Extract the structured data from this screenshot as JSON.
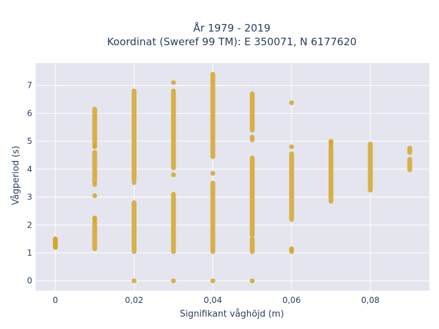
{
  "chart_data": {
    "type": "scatter",
    "title_lines": [
      "År 1979 - 2019",
      "Koordinat (Sweref 99 TM): E 350071, N 6177620"
    ],
    "xlabel": "Signifikant våghöjd (m)",
    "ylabel": "Vågperiod (s)",
    "xlim": [
      -0.005,
      0.095
    ],
    "ylim": [
      -0.35,
      7.8
    ],
    "x_ticks": [
      0,
      0.02,
      0.04,
      0.06,
      0.08
    ],
    "x_tick_labels": [
      "0",
      "0,02",
      "0,04",
      "0,06",
      "0,08"
    ],
    "y_ticks": [
      0,
      1,
      2,
      3,
      4,
      5,
      6,
      7
    ],
    "y_tick_labels": [
      "0",
      "1",
      "2",
      "3",
      "4",
      "5",
      "6",
      "7"
    ],
    "grid": true,
    "colors": {
      "marker": "#d4a72c",
      "plot_bg": "#e5e5ef",
      "grid": "#ffffff",
      "text": "#2a3f5f"
    },
    "columns": [
      {
        "x": 0.0,
        "ranges": [
          [
            1.2,
            1.5
          ]
        ],
        "points": [
          1.2,
          1.25,
          1.35,
          1.4,
          1.45,
          1.5
        ]
      },
      {
        "x": 0.01,
        "ranges": [
          [
            1.15,
            2.1
          ],
          [
            3.55,
            4.6
          ],
          [
            4.95,
            6.15
          ]
        ],
        "points": [
          2.2,
          2.25,
          3.05,
          3.45,
          4.8,
          4.85
        ]
      },
      {
        "x": 0.02,
        "ranges": [
          [
            1.05,
            2.8
          ],
          [
            3.65,
            6.8
          ]
        ],
        "points": [
          0,
          3.52
        ]
      },
      {
        "x": 0.03,
        "ranges": [
          [
            1.05,
            3.1
          ],
          [
            4.05,
            6.8
          ]
        ],
        "points": [
          0,
          3.8,
          7.1
        ]
      },
      {
        "x": 0.04,
        "ranges": [
          [
            1.05,
            3.5
          ],
          [
            4.45,
            7.4
          ]
        ],
        "points": [
          0,
          3.85
        ]
      },
      {
        "x": 0.05,
        "ranges": [
          [
            1.05,
            1.5
          ],
          [
            1.65,
            4.4
          ],
          [
            5.4,
            6.7
          ]
        ],
        "points": [
          0,
          5.05,
          5.15
        ]
      },
      {
        "x": 0.06,
        "ranges": [
          [
            2.2,
            4.55
          ]
        ],
        "points": [
          1.05,
          1.1,
          1.15,
          4.8,
          6.38
        ]
      },
      {
        "x": 0.07,
        "ranges": [
          [
            2.85,
            4.75
          ]
        ],
        "points": [
          4.85,
          4.95,
          5.0
        ]
      },
      {
        "x": 0.08,
        "ranges": [
          [
            3.25,
            4.9
          ]
        ],
        "points": []
      },
      {
        "x": 0.09,
        "ranges": [
          [
            3.98,
            4.35
          ],
          [
            4.6,
            4.75
          ]
        ],
        "points": []
      }
    ]
  }
}
